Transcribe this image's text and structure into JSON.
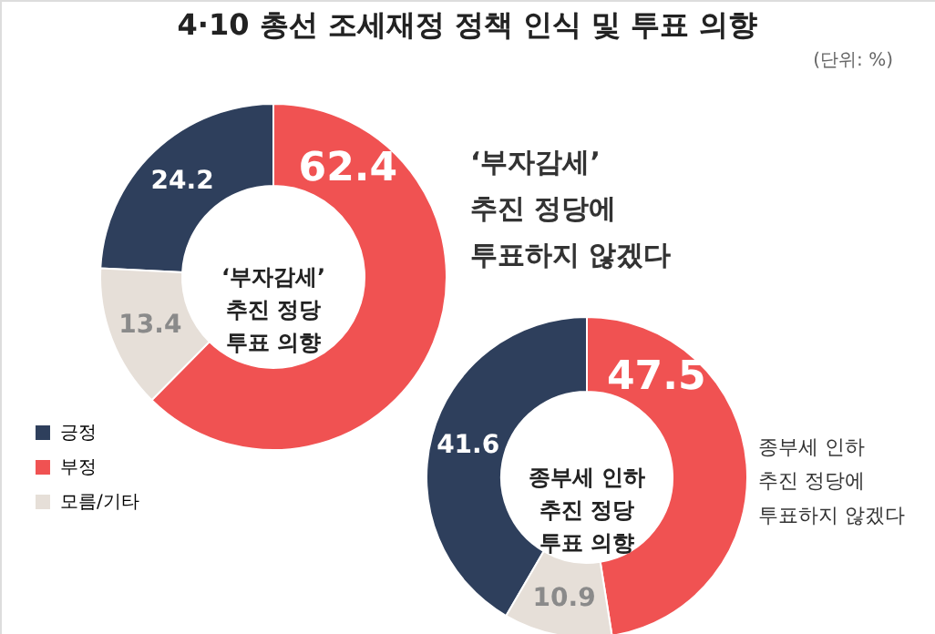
{
  "chart_data": {
    "type": "donut",
    "title": "4·10 총선 조세재정 정책 인식 및 투표 의향",
    "subtitle": "(단위: %)",
    "categories": [
      "긍정",
      "부정",
      "모름/기타"
    ],
    "colors": [
      "#2e3f5c",
      "#f05252",
      "#e6dfd8"
    ],
    "data_labels": true,
    "legend": "bottom left",
    "series": [
      {
        "values": [
          24.2,
          62.4,
          13.4
        ]
      },
      {
        "values": [
          41.6,
          47.5,
          10.9
        ]
      }
    ],
    "annotations": [
      "‘부자감세’\n추진 정당\n투표 의향",
      "‘부자감세’\n추진 정당에\n투표하지 않겠다",
      "종부세 인하\n추진 정당\n투표 의향",
      "종부세 인하\n추진 정당에\n투표하지 않겠다"
    ]
  }
}
